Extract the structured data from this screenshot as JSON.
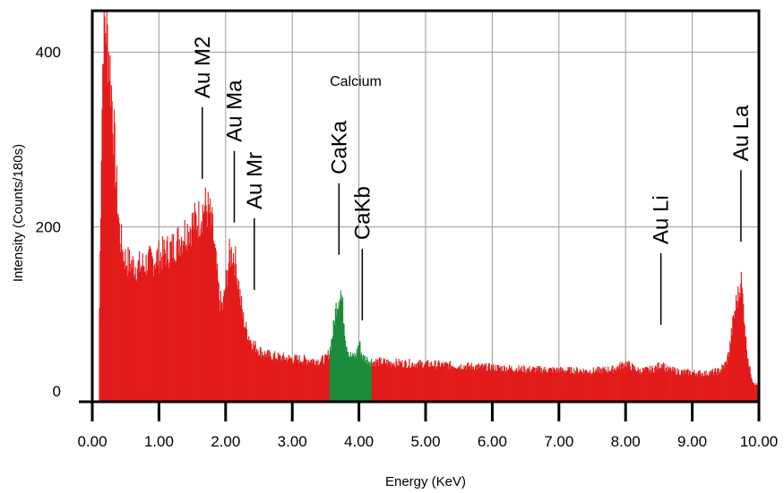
{
  "chart_data": {
    "type": "area",
    "title": "",
    "xlabel": "Energy (KeV)",
    "ylabel": "Intensity (Counts/180s)",
    "xlim": [
      0,
      10
    ],
    "ylim": [
      0,
      440
    ],
    "grid": true,
    "x_ticks": [
      "0.00",
      "1.00",
      "2.00",
      "3.00",
      "4.00",
      "5.00",
      "6.00",
      "7.00",
      "8.00",
      "9.00",
      "10.00"
    ],
    "y_ticks": [
      {
        "value": 0,
        "label": "0"
      },
      {
        "value": 200,
        "label": "200"
      },
      {
        "value": 400,
        "label": "400"
      }
    ],
    "colors": {
      "spectrum": "#e31b1b",
      "calcium": "#1a8c3a",
      "grid": "#9a9a9a",
      "frame": "#000000"
    },
    "series": [
      {
        "x": [
          0.1,
          0.13,
          0.16,
          0.2,
          0.25,
          0.3,
          0.35,
          0.4,
          0.45,
          0.5,
          0.6,
          0.7,
          0.8,
          0.9,
          1.0,
          1.1,
          1.2,
          1.3,
          1.4,
          1.5,
          1.6,
          1.65,
          1.7,
          1.75,
          1.8,
          1.85,
          1.9,
          1.95,
          2.0,
          2.05,
          2.1,
          2.15,
          2.2,
          2.25,
          2.3,
          2.35,
          2.4,
          2.5,
          2.6,
          2.8,
          3.0,
          3.2,
          3.4,
          3.5,
          3.55,
          3.6,
          3.65,
          3.7,
          3.72,
          3.75,
          3.8,
          3.85,
          3.9,
          3.95,
          4.0,
          4.02,
          4.05,
          4.1,
          4.15,
          4.2,
          4.4,
          4.6,
          5.0,
          5.5,
          6.0,
          6.5,
          7.0,
          7.5,
          7.8,
          8.0,
          8.1,
          8.2,
          8.4,
          8.5,
          8.55,
          8.6,
          8.8,
          9.0,
          9.2,
          9.4,
          9.5,
          9.55,
          9.6,
          9.65,
          9.7,
          9.72,
          9.75,
          9.78,
          9.8,
          9.85,
          9.9,
          9.95,
          10.0
        ],
        "y": [
          110,
          300,
          440,
          440,
          400,
          340,
          260,
          200,
          175,
          165,
          160,
          158,
          162,
          165,
          170,
          175,
          180,
          190,
          200,
          208,
          215,
          225,
          228,
          220,
          200,
          160,
          120,
          110,
          140,
          170,
          175,
          160,
          130,
          100,
          85,
          75,
          68,
          60,
          55,
          52,
          50,
          49,
          48,
          50,
          58,
          80,
          110,
          125,
          130,
          110,
          70,
          55,
          52,
          55,
          70,
          60,
          52,
          50,
          48,
          47,
          46,
          45,
          44,
          42,
          40,
          38,
          37,
          36,
          38,
          45,
          40,
          36,
          38,
          42,
          45,
          38,
          35,
          34,
          33,
          36,
          45,
          60,
          90,
          115,
          128,
          150,
          120,
          95,
          70,
          40,
          25,
          20,
          18
        ]
      }
    ],
    "highlight": {
      "label": "Calcium",
      "x_range": [
        3.55,
        4.18
      ]
    },
    "peaks": [
      {
        "label": "Au M2",
        "x": 1.65,
        "line_bottom": 255
      },
      {
        "label": "Au Ma",
        "x": 2.13,
        "line_bottom": 205
      },
      {
        "label": "Au Mr",
        "x": 2.43,
        "line_bottom": 128
      },
      {
        "label": "CaKa",
        "x": 3.7,
        "line_bottom": 168
      },
      {
        "label": "CaKb",
        "x": 4.05,
        "line_bottom": 93
      },
      {
        "label": "Au Li",
        "x": 8.53,
        "line_bottom": 88
      },
      {
        "label": "Au La",
        "x": 9.73,
        "line_bottom": 183
      }
    ]
  }
}
